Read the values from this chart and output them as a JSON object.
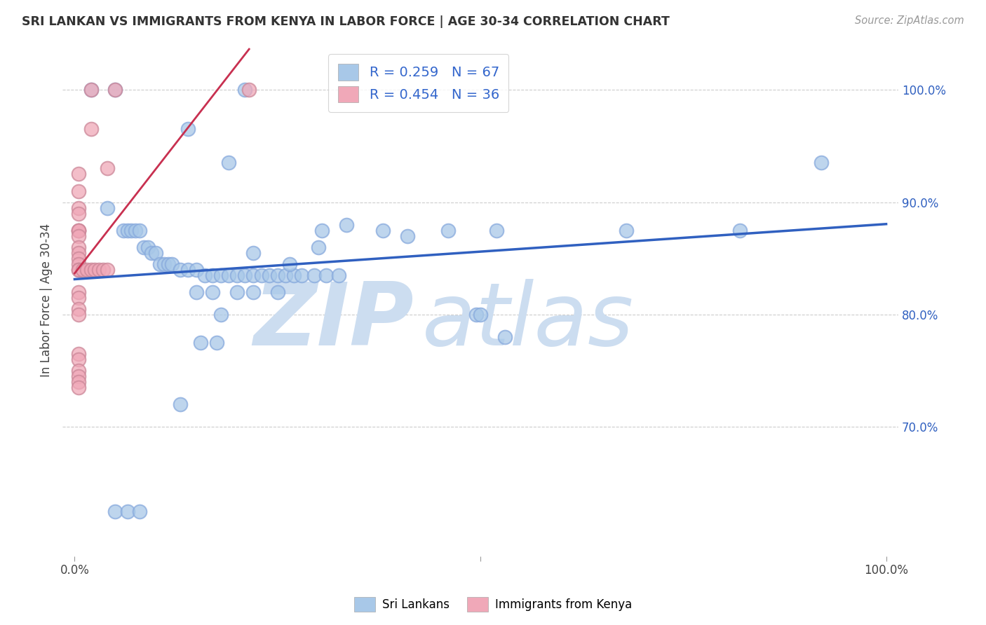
{
  "title": "SRI LANKAN VS IMMIGRANTS FROM KENYA IN LABOR FORCE | AGE 30-34 CORRELATION CHART",
  "source": "Source: ZipAtlas.com",
  "ylabel": "In Labor Force | Age 30-34",
  "legend_label_blue": "Sri Lankans",
  "legend_label_pink": "Immigrants from Kenya",
  "blue_color": "#a8c8e8",
  "pink_color": "#f0a8b8",
  "blue_line_color": "#3060c0",
  "pink_line_color": "#c83050",
  "watermark_zip": "ZIP",
  "watermark_atlas": "atlas",
  "watermark_color": "#ccddf0",
  "legend_r_color": "#3366cc",
  "legend_n_color": "#3366cc",
  "blue_x": [
    0.02,
    0.05,
    0.14,
    0.19,
    0.21,
    0.305,
    0.335,
    0.38,
    0.41,
    0.46,
    0.495,
    0.53,
    0.68,
    0.82,
    0.92,
    0.04,
    0.06,
    0.065,
    0.07,
    0.075,
    0.08,
    0.085,
    0.09,
    0.095,
    0.1,
    0.105,
    0.11,
    0.115,
    0.12,
    0.13,
    0.14,
    0.15,
    0.16,
    0.17,
    0.18,
    0.19,
    0.2,
    0.21,
    0.22,
    0.23,
    0.24,
    0.25,
    0.26,
    0.27,
    0.28,
    0.295,
    0.31,
    0.325,
    0.15,
    0.17,
    0.2,
    0.22,
    0.25,
    0.13,
    0.22,
    0.155,
    0.175,
    0.05,
    0.065,
    0.08,
    0.18,
    0.265,
    0.3,
    0.5,
    0.52
  ],
  "blue_y": [
    1.0,
    1.0,
    0.965,
    0.935,
    1.0,
    0.875,
    0.88,
    0.875,
    0.87,
    0.875,
    0.8,
    0.78,
    0.875,
    0.875,
    0.935,
    0.895,
    0.875,
    0.875,
    0.875,
    0.875,
    0.875,
    0.86,
    0.86,
    0.855,
    0.855,
    0.845,
    0.845,
    0.845,
    0.845,
    0.84,
    0.84,
    0.84,
    0.835,
    0.835,
    0.835,
    0.835,
    0.835,
    0.835,
    0.835,
    0.835,
    0.835,
    0.835,
    0.835,
    0.835,
    0.835,
    0.835,
    0.835,
    0.835,
    0.82,
    0.82,
    0.82,
    0.82,
    0.82,
    0.72,
    0.855,
    0.775,
    0.775,
    0.625,
    0.625,
    0.625,
    0.8,
    0.845,
    0.86,
    0.8,
    0.875
  ],
  "pink_x": [
    0.02,
    0.05,
    0.02,
    0.04,
    0.005,
    0.005,
    0.005,
    0.005,
    0.005,
    0.005,
    0.005,
    0.005,
    0.005,
    0.005,
    0.005,
    0.005,
    0.005,
    0.005,
    0.01,
    0.015,
    0.02,
    0.025,
    0.03,
    0.035,
    0.04,
    0.005,
    0.005,
    0.005,
    0.005,
    0.005,
    0.005,
    0.215,
    0.005,
    0.005,
    0.005,
    0.005
  ],
  "pink_y": [
    1.0,
    1.0,
    0.965,
    0.93,
    0.925,
    0.91,
    0.895,
    0.89,
    0.875,
    0.875,
    0.875,
    0.87,
    0.86,
    0.855,
    0.85,
    0.845,
    0.84,
    0.84,
    0.84,
    0.84,
    0.84,
    0.84,
    0.84,
    0.84,
    0.84,
    0.82,
    0.815,
    0.805,
    0.8,
    0.765,
    0.76,
    1.0,
    0.75,
    0.745,
    0.74,
    0.735
  ]
}
